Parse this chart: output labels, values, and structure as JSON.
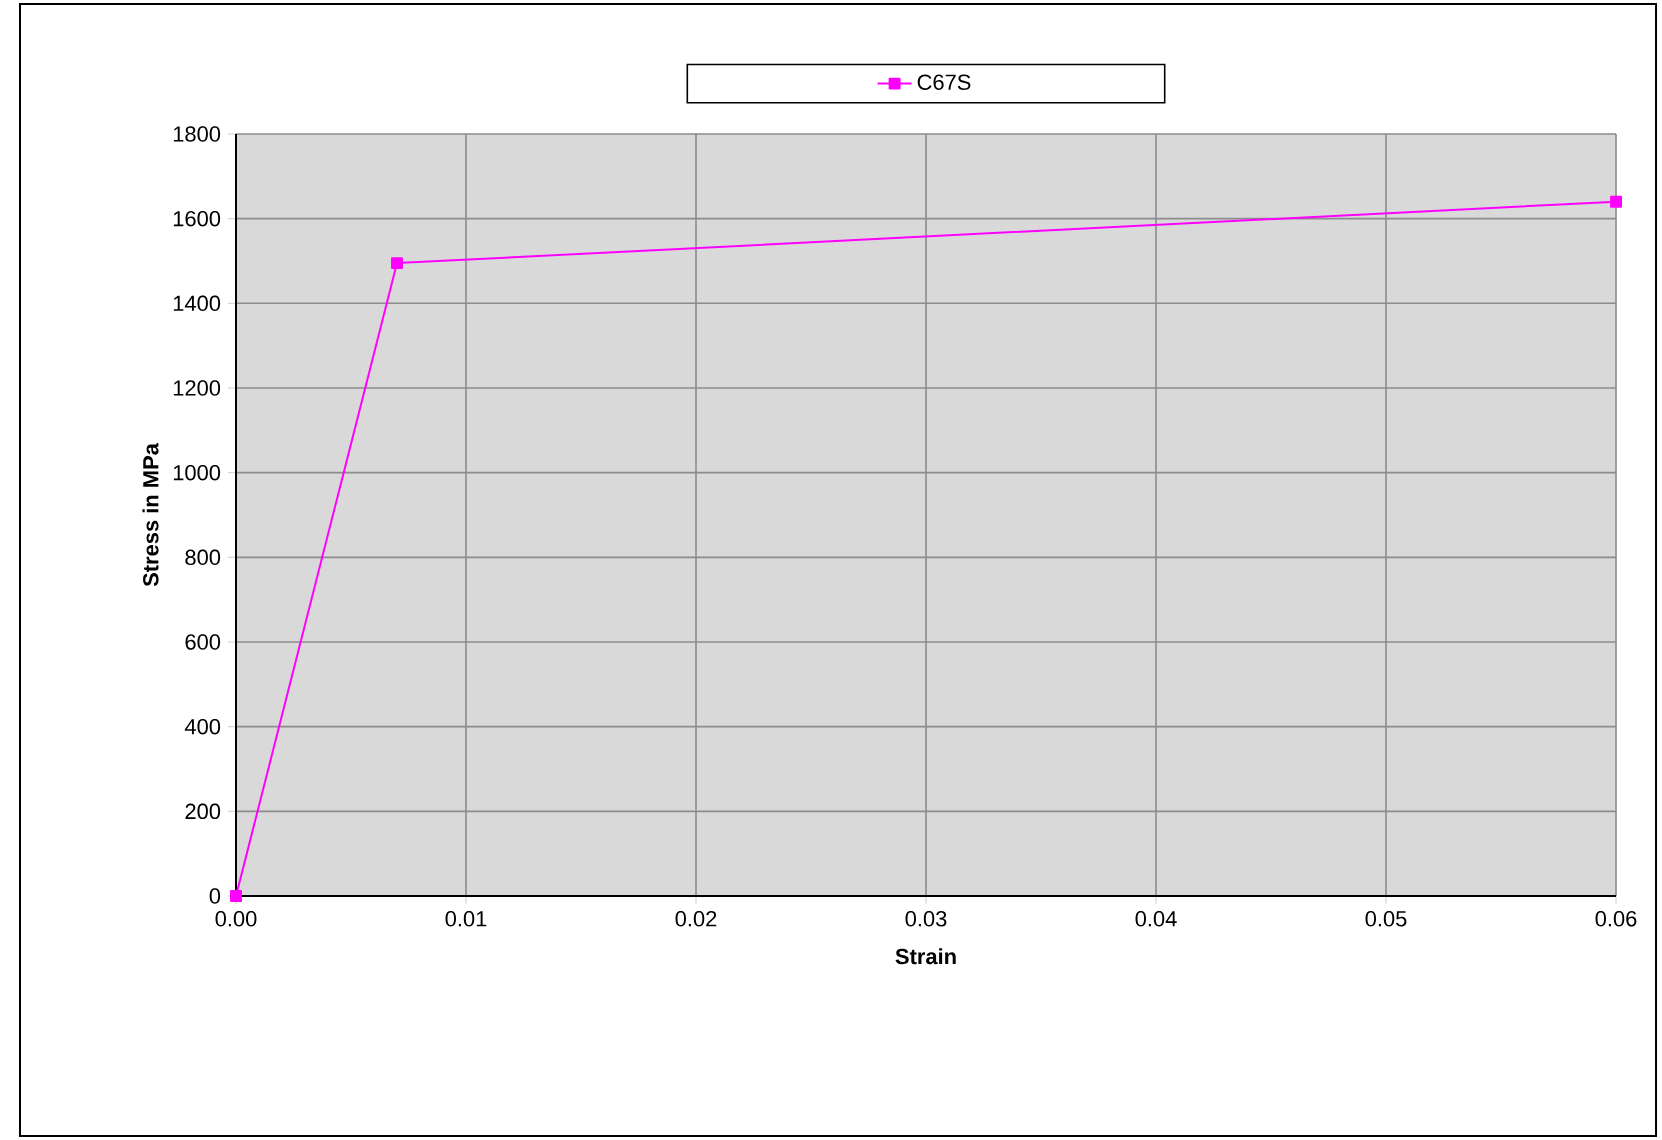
{
  "chart_data": {
    "type": "line",
    "xlabel": "Strain",
    "ylabel": "Stress in MPa",
    "x": [
      0,
      0.007,
      0.06
    ],
    "series": [
      {
        "name": "C67S",
        "color": "#ff00ff",
        "values": [
          0,
          1495,
          1640
        ]
      }
    ],
    "xlim": [
      0,
      0.06
    ],
    "xticks": [
      {
        "value": 0,
        "label": "0.00"
      },
      {
        "value": 0.01,
        "label": "0.01"
      },
      {
        "value": 0.02,
        "label": "0.02"
      },
      {
        "value": 0.03,
        "label": "0.03"
      },
      {
        "value": 0.04,
        "label": "0.04"
      },
      {
        "value": 0.05,
        "label": "0.05"
      },
      {
        "value": 0.06,
        "label": "0.06"
      }
    ],
    "ylim": [
      0,
      1800
    ],
    "yticks": [
      0,
      200,
      400,
      600,
      800,
      1000,
      1200,
      1400,
      1600,
      1800
    ],
    "grid": true,
    "legend": "top",
    "marker": "square",
    "line_style": "solid"
  }
}
